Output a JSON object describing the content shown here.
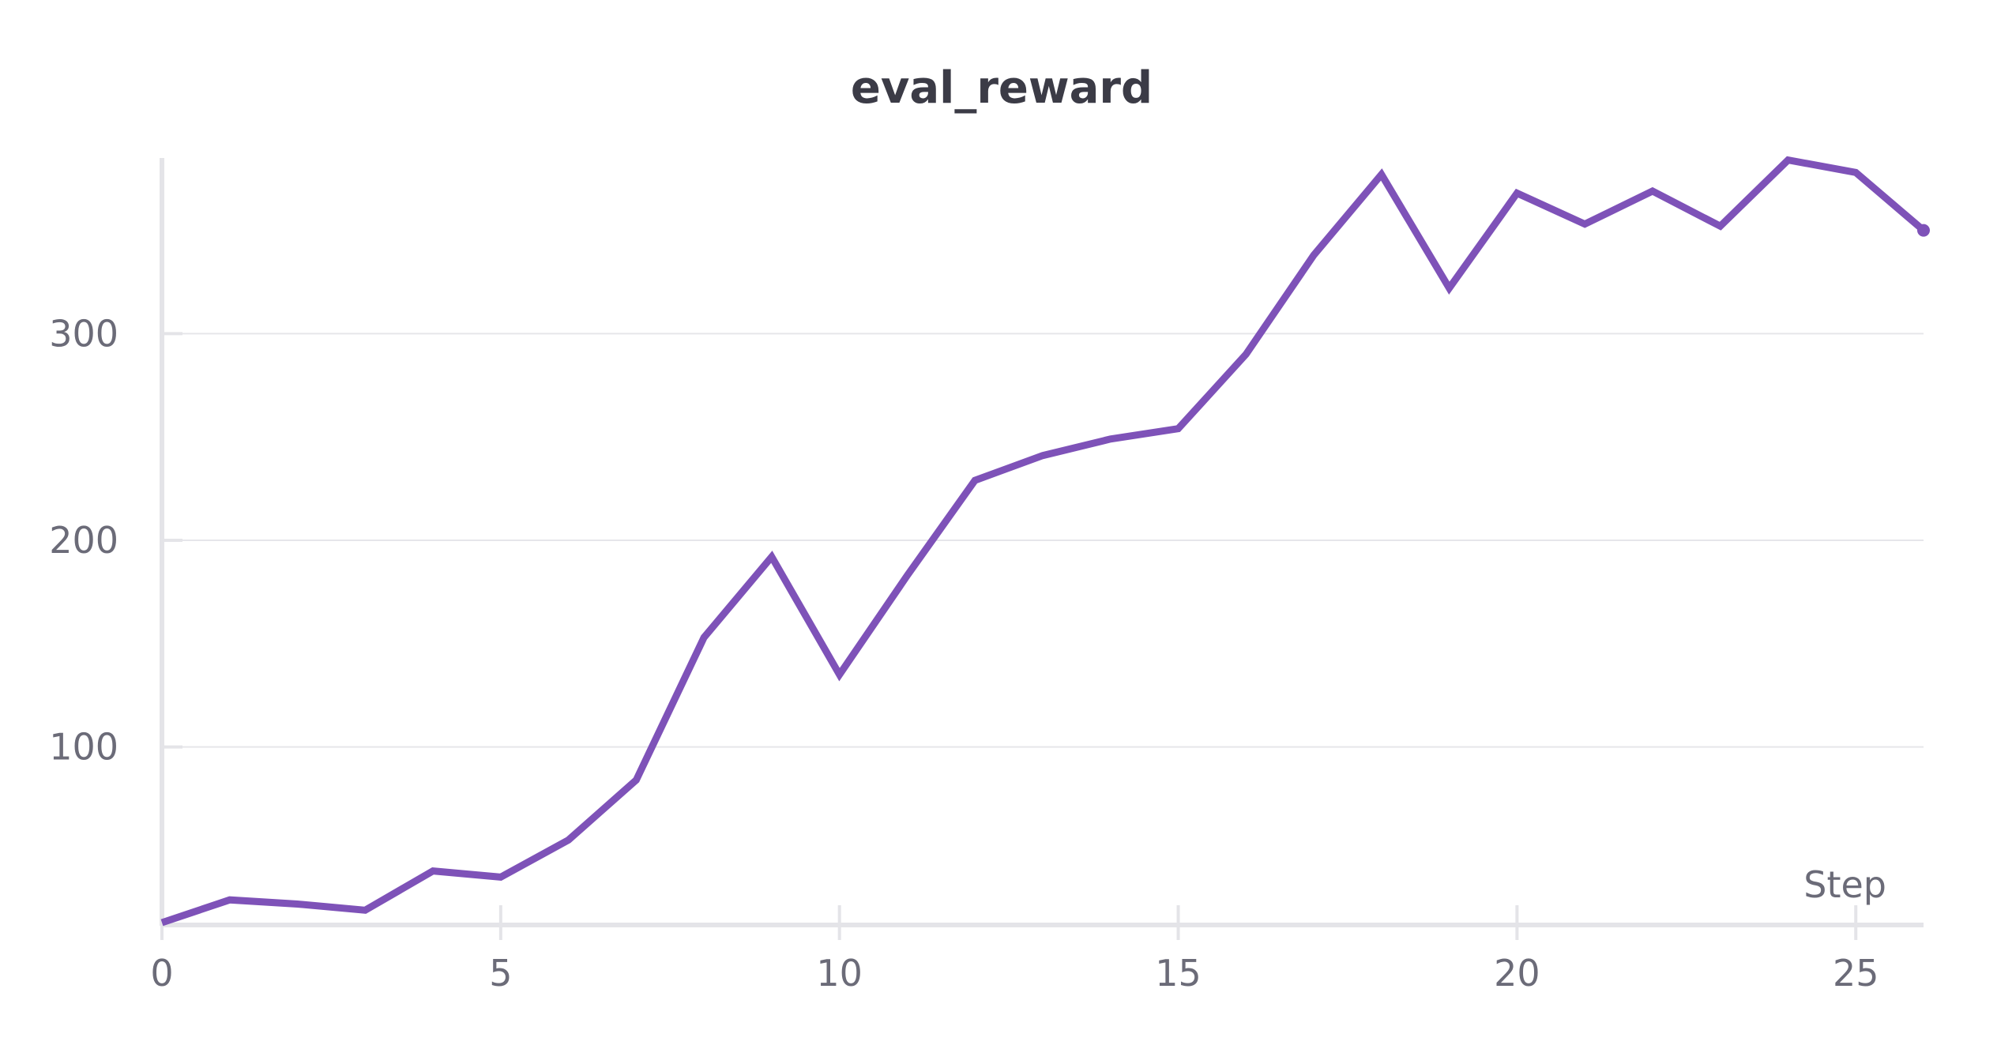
{
  "chart_data": {
    "type": "line",
    "title": "eval_reward",
    "xlabel": "Step",
    "ylabel": "",
    "xlim": [
      0,
      26
    ],
    "ylim": [
      15,
      385
    ],
    "x_ticks": [
      0,
      5,
      10,
      15,
      20,
      25
    ],
    "y_ticks": [
      100,
      200,
      300
    ],
    "grid": true,
    "legend": "none",
    "series": [
      {
        "color": "#7e52b8",
        "x": [
          0,
          1,
          2,
          3,
          4,
          5,
          6,
          7,
          8,
          9,
          10,
          11,
          12,
          13,
          14,
          15,
          16,
          17,
          18,
          19,
          20,
          21,
          22,
          23,
          24,
          25,
          26
        ],
        "y": [
          15,
          26,
          24,
          21,
          40,
          37,
          55,
          84,
          153,
          192,
          135,
          183,
          229,
          241,
          249,
          254,
          290,
          338,
          377,
          322,
          368,
          353,
          369,
          352,
          384,
          378,
          350
        ]
      }
    ]
  }
}
